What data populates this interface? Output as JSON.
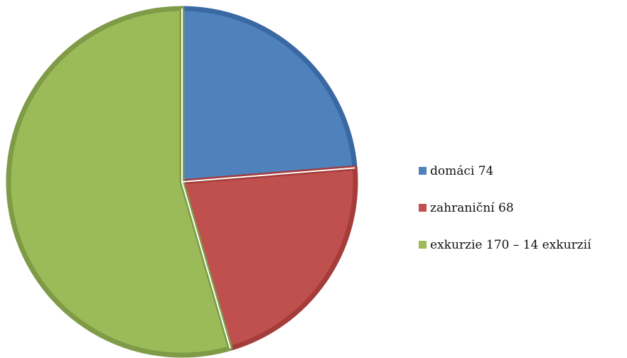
{
  "chart_data": {
    "type": "pie",
    "title": "",
    "categories": [
      "domáci",
      "zahraniční",
      "exkurzie"
    ],
    "values": [
      74,
      68,
      170
    ],
    "legend": {
      "placement": "right",
      "entries": [
        "domáci 74",
        "zahraniční 68",
        "exkurzie 170 – 14 exkurzií"
      ]
    },
    "colors": [
      "#4f81bd",
      "#c0504d",
      "#9bbb59"
    ],
    "edge_colors": [
      "#3a68a3",
      "#a43c3a",
      "#7f9b47"
    ],
    "start_angle": "12 o'clock, clockwise"
  }
}
